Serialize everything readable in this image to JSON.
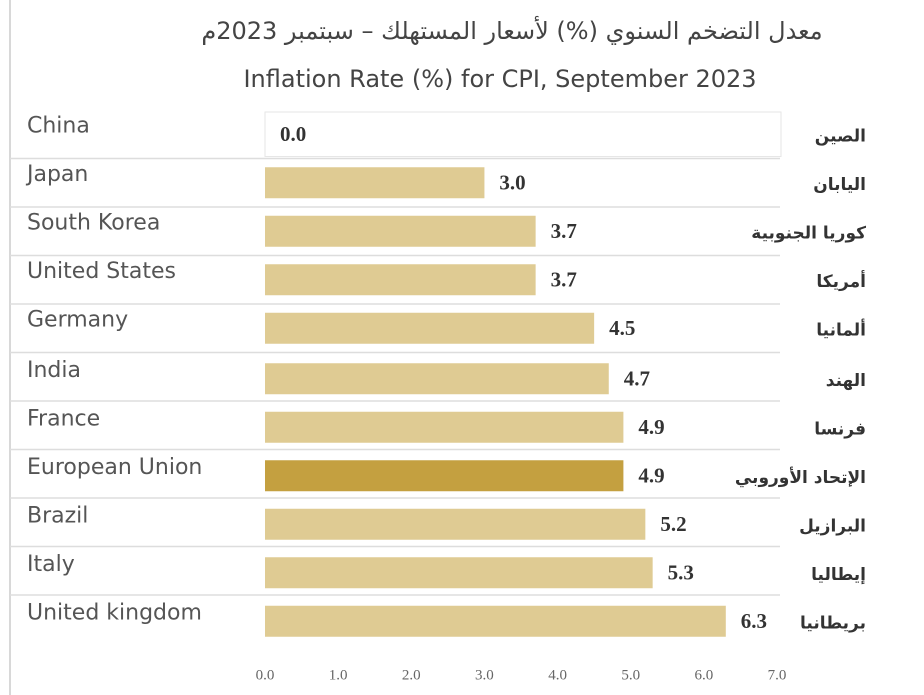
{
  "chart_data": {
    "type": "bar",
    "orientation": "horizontal",
    "title": "معدل التضخم السنوي (%) لأسعار المستهلك – سبتمبر 2023م",
    "subtitle": "Inflation Rate (%) for CPI, September 2023",
    "categories": [
      "China",
      "Japan",
      "South Korea",
      "United States",
      "Germany",
      "India",
      "France",
      "European Union",
      "Brazil",
      "Italy",
      "United kingdom"
    ],
    "categories_ar": [
      "الصين",
      "اليابان",
      "كوريا الجنوبية",
      "أمريكا",
      "ألمانيا",
      "الهند",
      "فرنسا",
      "الإتحاد الأوروبي",
      "البرازيل",
      "إيطاليا",
      "بريطانيا"
    ],
    "values": [
      0,
      3,
      3.7,
      3.7,
      4.5,
      4.7,
      4.9,
      4.9,
      5.2,
      5.3,
      6.3
    ],
    "value_labels": [
      "0.0",
      "3.0",
      "3.7",
      "3.7",
      "4.5",
      "4.7",
      "4.9",
      "4.9",
      "5.2",
      "5.3",
      "6.3"
    ],
    "colors": [
      "#dfcb93",
      "#dfcb93",
      "#dfcb93",
      "#dfcb93",
      "#dfcb93",
      "#dfcb93",
      "#dfcb93",
      "#c4a040",
      "#dfcb93",
      "#dfcb93",
      "#dfcb93"
    ],
    "xlim": [
      0,
      7
    ],
    "xticks": [
      {
        "value": 0,
        "label": "0.0"
      },
      {
        "value": 1,
        "label": "1.0"
      },
      {
        "value": 2,
        "label": "2.0"
      },
      {
        "value": 3,
        "label": "3.0"
      },
      {
        "value": 4,
        "label": "4.0"
      },
      {
        "value": 5,
        "label": "5.0"
      },
      {
        "value": 6,
        "label": "6.0"
      },
      {
        "value": 7,
        "label": "7.0"
      }
    ],
    "grid": false
  }
}
